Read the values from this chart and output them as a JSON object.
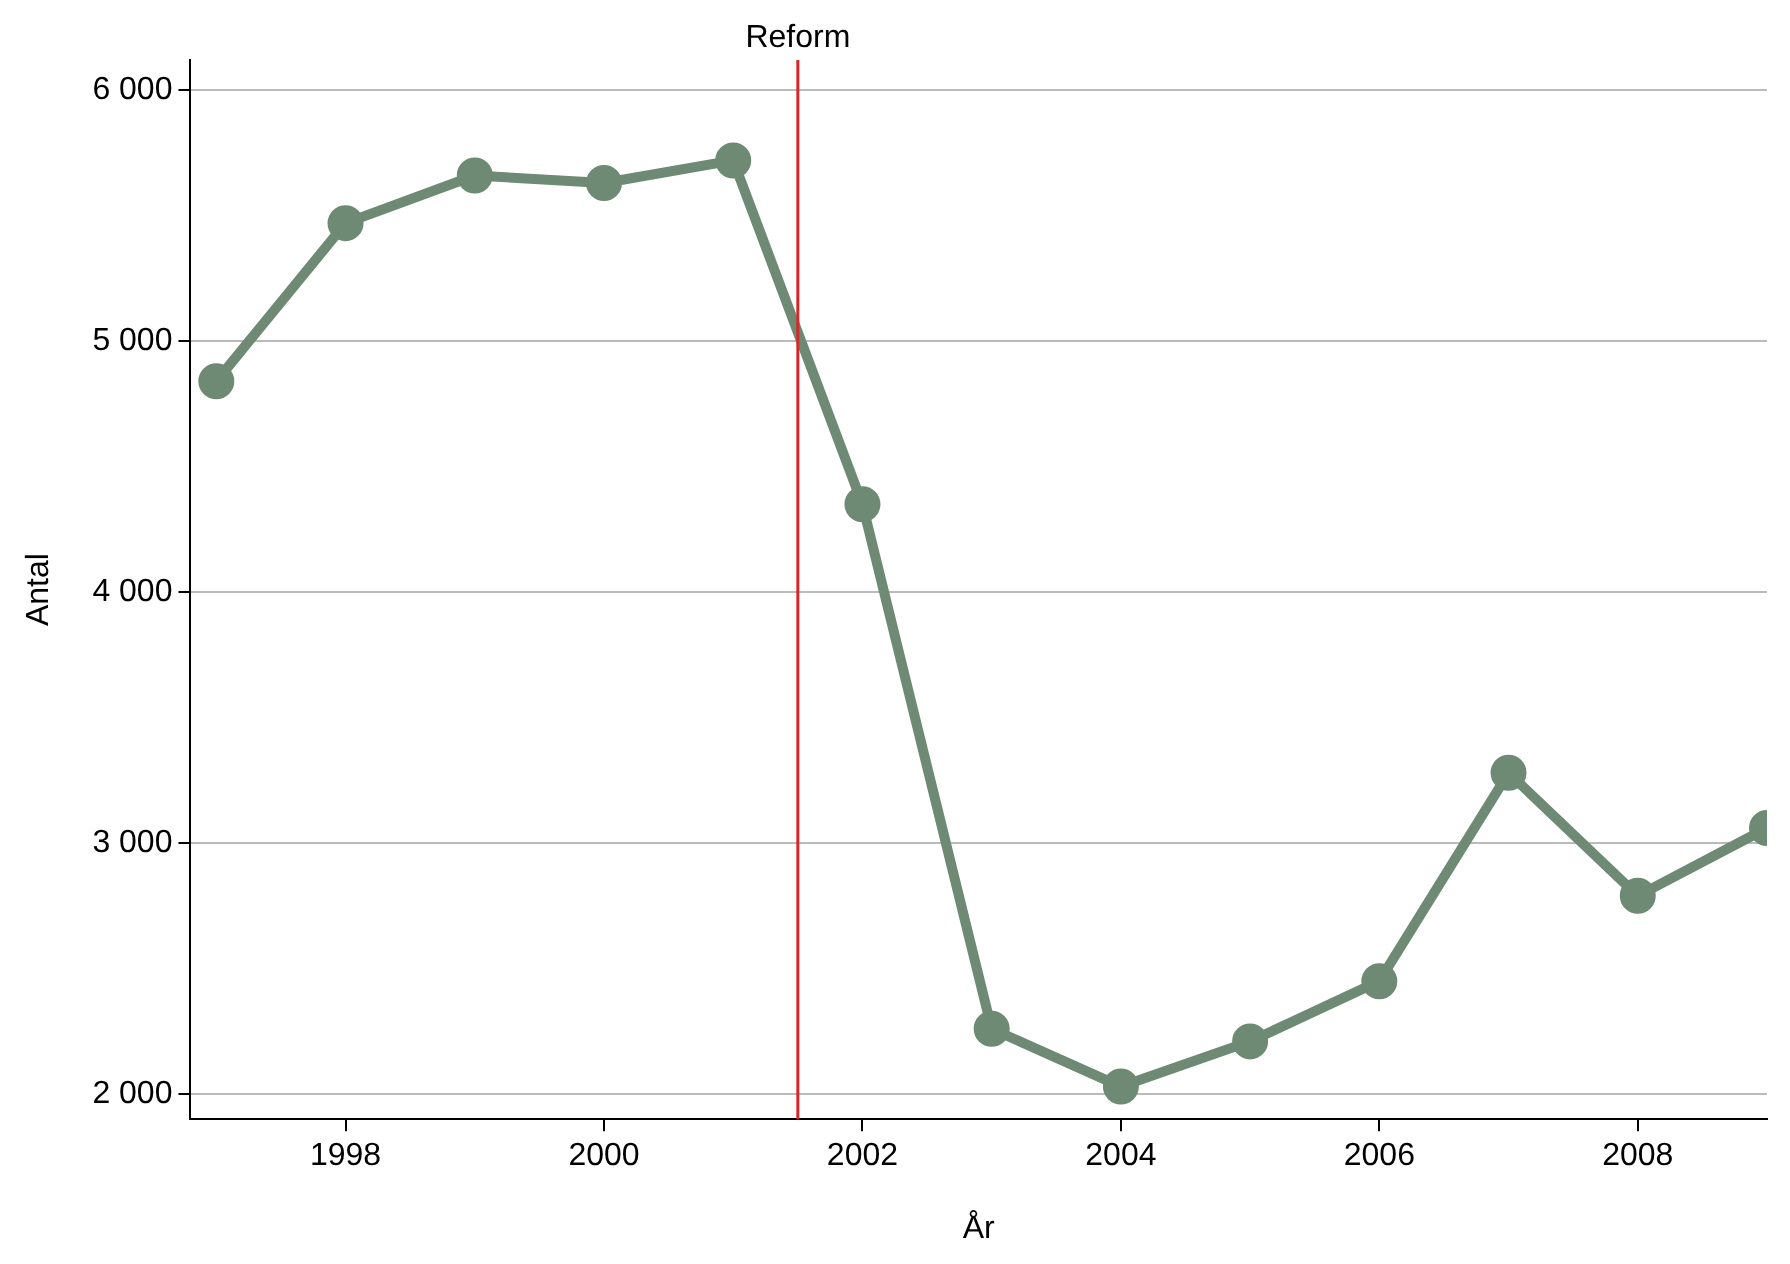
{
  "chart_data": {
    "type": "line",
    "xlabel": "År",
    "ylabel": "Antal",
    "x": [
      1997,
      1998,
      1999,
      2000,
      2001,
      2002,
      2003,
      2004,
      2005,
      2006,
      2007,
      2008,
      2009
    ],
    "series": [
      {
        "color": "#6f8a74",
        "values": [
          4840,
          5470,
          5660,
          5630,
          5720,
          4350,
          2260,
          2030,
          2210,
          2450,
          3280,
          2790,
          3060
        ]
      }
    ],
    "xlim": [
      1996.8,
      2009
    ],
    "xticks": [
      1998,
      2000,
      2002,
      2004,
      2006,
      2008
    ],
    "ylim": [
      1900,
      6120
    ],
    "yticks": [
      {
        "value": 2000,
        "label": "2 000"
      },
      {
        "value": 3000,
        "label": "3 000"
      },
      {
        "value": 4000,
        "label": "4 000"
      },
      {
        "value": 5000,
        "label": "5 000"
      },
      {
        "value": 6000,
        "label": "6 000"
      }
    ],
    "ref_lines": [
      {
        "axis": "x",
        "value": 2001.5,
        "label": "Reform",
        "color": "#d62728"
      }
    ],
    "grid": "y",
    "legend": false,
    "marker": "circle",
    "line_style": "solid"
  }
}
